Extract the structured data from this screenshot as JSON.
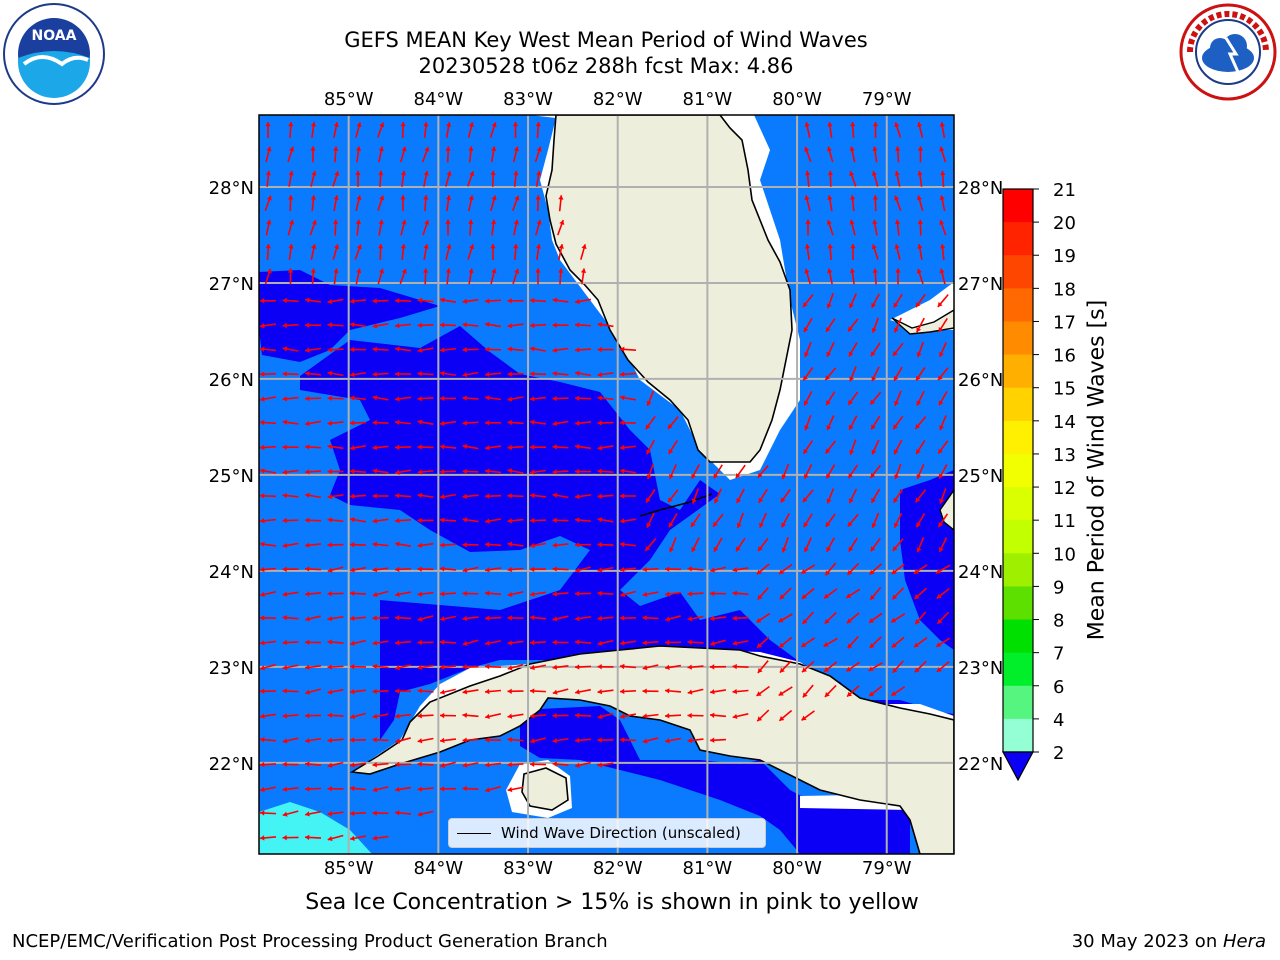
{
  "title": {
    "line1": "GEFS MEAN Key West Mean Period of Wind Waves",
    "line2": "20230528 t06z 288h fcst   Max: 4.86"
  },
  "map": {
    "lon_labels": [
      "85°W",
      "84°W",
      "83°W",
      "82°W",
      "81°W",
      "80°W",
      "79°W"
    ],
    "lat_labels": [
      "28°N",
      "27°N",
      "26°N",
      "25°N",
      "24°N",
      "23°N",
      "22°N"
    ],
    "lon_range": [
      -86.0,
      -78.25
    ],
    "lat_range": [
      21.05,
      28.75
    ],
    "ocean_color": "#0a7bff",
    "deep_color": "#0b00f5",
    "land_color": "#eeeedc",
    "grid_color": "#b0b0b0",
    "arrow_color": "#ff0000"
  },
  "legend": {
    "label": "Wind Wave Direction (unscaled)"
  },
  "colorbar": {
    "label": "Mean Period of Wind Waves [s]",
    "ticks": [
      "21",
      "20",
      "19",
      "18",
      "17",
      "16",
      "15",
      "14",
      "13",
      "12",
      "11",
      "10",
      "9",
      "8",
      "7",
      "6",
      "4",
      "2"
    ],
    "colors": [
      "#ff0000",
      "#ff2300",
      "#ff4600",
      "#ff6900",
      "#ff8c00",
      "#ffaf00",
      "#ffd200",
      "#ffef00",
      "#f1ff00",
      "#daff00",
      "#c2ff00",
      "#9ff000",
      "#5de000",
      "#00e000",
      "#00ef2a",
      "#55f57f",
      "#94ffd4",
      "#a5ffff",
      "#78ffff",
      "#35f6ff",
      "#00ebf4",
      "#00c7ff",
      "#0b7bff"
    ]
  },
  "ice_note": "Sea Ice Concentration > 15% is shown in pink to yellow",
  "footer": {
    "left": "NCEP/EMC/Verification Post Processing Product Generation Branch",
    "right_date": "30 May 2023 on ",
    "right_host": "Hera"
  },
  "logos": {
    "left": "NOAA",
    "right": "NATIONAL WEATHER SERVICE"
  }
}
